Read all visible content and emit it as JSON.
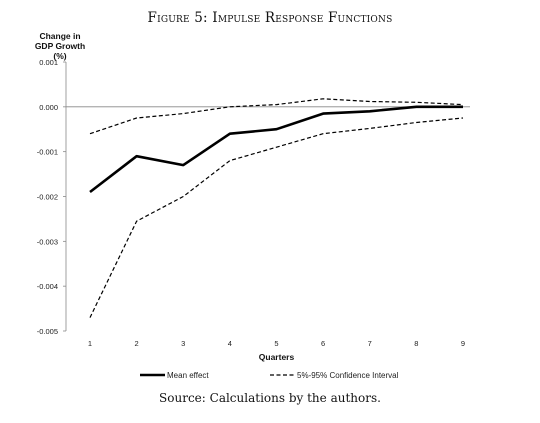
{
  "figure": {
    "title": "Figure 5: Impulse Response Functions",
    "source": "Source: Calculations by the authors."
  },
  "chart_data": {
    "type": "line",
    "title": "Impulse Response Functions",
    "ylabel": "Change in GDP Growth (%)",
    "xlabel": "Quarters",
    "x": [
      1,
      2,
      3,
      4,
      5,
      6,
      7,
      8,
      9
    ],
    "xticks": [
      "1",
      "2",
      "3",
      "4",
      "5",
      "6",
      "7",
      "8",
      "9"
    ],
    "yticks": [
      "0.001",
      "0.000",
      "-0.001",
      "-0.002",
      "-0.003",
      "-0.004",
      "-0.005"
    ],
    "ylim": [
      -0.005,
      0.001
    ],
    "grid": false,
    "legend_position": "bottom",
    "series": [
      {
        "name": "Mean effect",
        "style": "solid",
        "color": "#000000",
        "values": [
          -0.0019,
          -0.0011,
          -0.0013,
          -0.0006,
          -0.0005,
          -0.00015,
          -0.0001,
          0.0,
          0.0
        ]
      },
      {
        "name": "5%-95% Confidence Interval",
        "style": "dashed",
        "color": "#000000",
        "values": [
          -0.0006,
          -0.00025,
          -0.00015,
          0.0,
          5e-05,
          0.00018,
          0.00012,
          0.0001,
          5e-05
        ]
      },
      {
        "name": "",
        "style": "dashed",
        "color": "#000000",
        "values": [
          -0.0047,
          -0.00255,
          -0.002,
          -0.0012,
          -0.0009,
          -0.0006,
          -0.00048,
          -0.00035,
          -0.00025
        ]
      }
    ],
    "legend": [
      {
        "label": "Mean effect",
        "style": "solid"
      },
      {
        "label": "5%-95% Confidence Interval",
        "style": "dashed"
      }
    ]
  }
}
